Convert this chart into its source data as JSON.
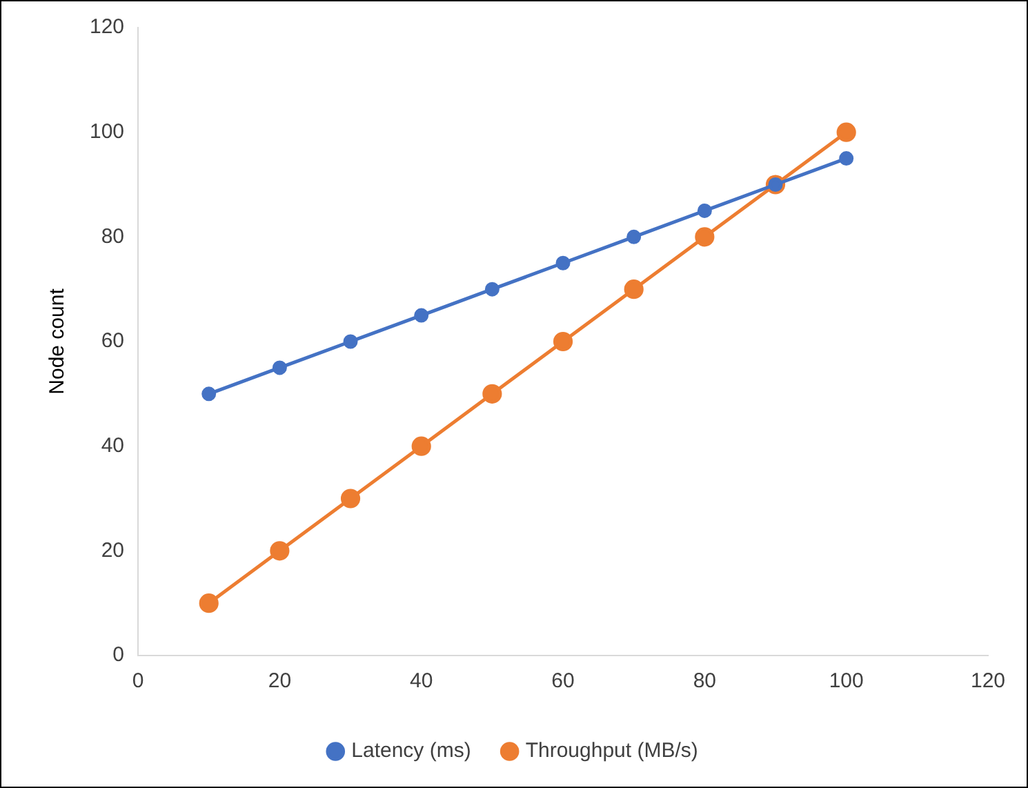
{
  "chart_data": {
    "type": "line",
    "ylabel": "Node count",
    "x": [
      10,
      20,
      30,
      40,
      50,
      60,
      70,
      80,
      90,
      100
    ],
    "series": [
      {
        "name": "Latency (ms)",
        "color": "#4472c4",
        "values": [
          50,
          55,
          60,
          65,
          70,
          75,
          80,
          85,
          90,
          95
        ]
      },
      {
        "name": "Throughput (MB/s)",
        "color": "#ed7d31",
        "values": [
          10,
          20,
          30,
          40,
          50,
          60,
          70,
          80,
          90,
          100
        ]
      }
    ],
    "xlim": [
      0,
      120
    ],
    "xticks": [
      0,
      20,
      40,
      60,
      80,
      100,
      120
    ],
    "ylim": [
      0,
      120
    ],
    "yticks": [
      0,
      20,
      40,
      60,
      80,
      100,
      120
    ],
    "legend": "bottom",
    "marker": "circle"
  }
}
